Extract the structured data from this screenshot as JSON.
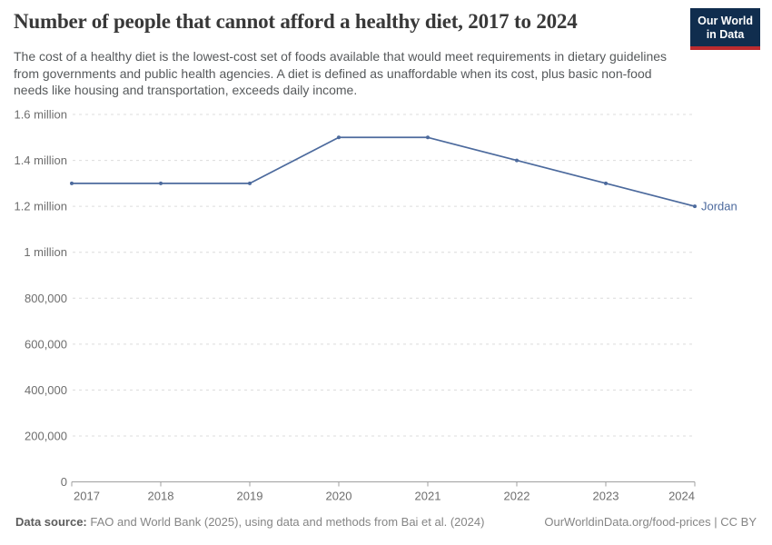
{
  "header": {
    "title": "Number of people that cannot afford a healthy diet, 2017 to 2024",
    "subtitle": "The cost of a healthy diet is the lowest-cost set of foods available that would meet requirements in dietary guidelines from governments and public health agencies. A diet is defined as unaffordable when its cost, plus basic non-food needs like housing and transportation, exceeds daily income.",
    "logo": {
      "line1": "Our World",
      "line2": "in Data",
      "bg_color": "#102d4e",
      "accent_color": "#bb2b2f"
    }
  },
  "chart_data": {
    "type": "line",
    "title": "Number of people that cannot afford a healthy diet, 2017 to 2024",
    "x": [
      2017,
      2018,
      2019,
      2020,
      2021,
      2022,
      2023,
      2024
    ],
    "series": [
      {
        "name": "Jordan",
        "color": "#4c6a9d",
        "values": [
          1300000,
          1300000,
          1300000,
          1500000,
          1500000,
          1400000,
          1300000,
          1200000
        ]
      }
    ],
    "ylim": [
      0,
      1600000
    ],
    "yticks": [
      {
        "value": 0,
        "label": "0"
      },
      {
        "value": 200000,
        "label": "200,000"
      },
      {
        "value": 400000,
        "label": "400,000"
      },
      {
        "value": 600000,
        "label": "600,000"
      },
      {
        "value": 800000,
        "label": "800,000"
      },
      {
        "value": 1000000,
        "label": "1 million"
      },
      {
        "value": 1200000,
        "label": "1.2 million"
      },
      {
        "value": 1400000,
        "label": "1.4 million"
      },
      {
        "value": 1600000,
        "label": "1.6 million"
      }
    ],
    "grid": "horizontal-dashed",
    "legend_position": "line-end-label"
  },
  "footer": {
    "data_source_label": "Data source:",
    "data_source_text": "FAO and World Bank (2025), using data and methods from Bai et al. (2024)",
    "attribution": "OurWorldinData.org/food-prices | CC BY"
  },
  "colors": {
    "line": "#4c6a9d",
    "grid": "#dcdcdc",
    "axis": "#9f9f9f",
    "tick_text": "#6e6e6e",
    "title_text": "#383838",
    "subtitle_text": "#56595b"
  }
}
